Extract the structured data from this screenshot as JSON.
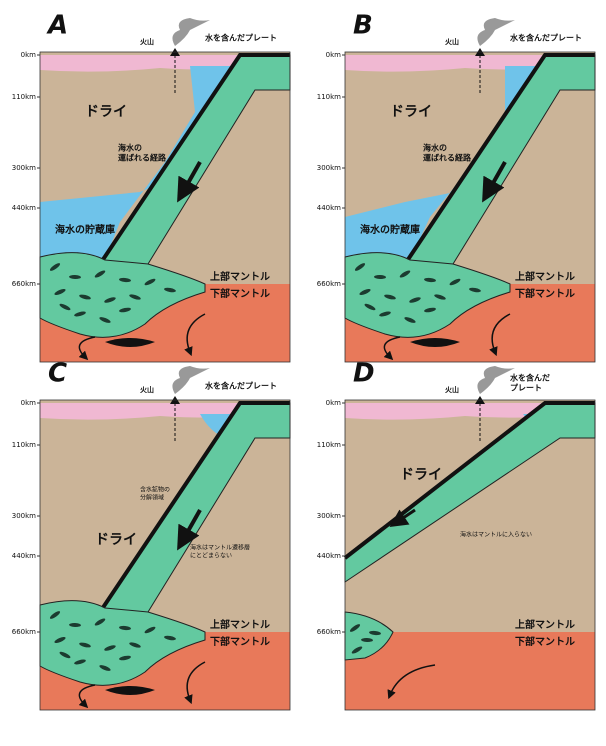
{
  "panels": [
    {
      "letter": "A",
      "volcano": "火山",
      "plate": [
        "水を含んだプレート"
      ],
      "depths": [
        "0km",
        "110km",
        "300km",
        "440km",
        "660km"
      ],
      "dry": "ドライ",
      "path_label": [
        "海水の",
        "運ばれる経路"
      ],
      "reservoir": "海水の貯蔵庫",
      "upper": "上部マントル",
      "lower": "下部マントル"
    },
    {
      "letter": "B",
      "volcano": "火山",
      "plate": [
        "水を含んだプレート"
      ],
      "depths": [
        "0km",
        "110km",
        "300km",
        "440km",
        "660km"
      ],
      "dry": "ドライ",
      "path_label": [
        "海水の",
        "運ばれる経路"
      ],
      "reservoir": "海水の貯蔵庫",
      "upper": "上部マントル",
      "lower": "下部マントル"
    },
    {
      "letter": "C",
      "volcano": "火山",
      "plate": [
        "水を含んだプレート"
      ],
      "depths": [
        "0km",
        "110km",
        "300km",
        "440km",
        "660km"
      ],
      "dry": "ドライ",
      "note1": [
        "含水鉱物の",
        "分解領域"
      ],
      "note2": [
        "海水はマントル遷移層",
        "にとどまらない"
      ],
      "upper": "上部マントル",
      "lower": "下部マントル"
    },
    {
      "letter": "D",
      "volcano": "火山",
      "plate": [
        "水を含んだ",
        "プレート"
      ],
      "depths": [
        "0km",
        "110km",
        "300km",
        "440km",
        "660km"
      ],
      "dry": "ドライ",
      "note2": [
        "海水はマントルに入らない"
      ],
      "upper": "上部マントル",
      "lower": "下部マントル"
    }
  ]
}
